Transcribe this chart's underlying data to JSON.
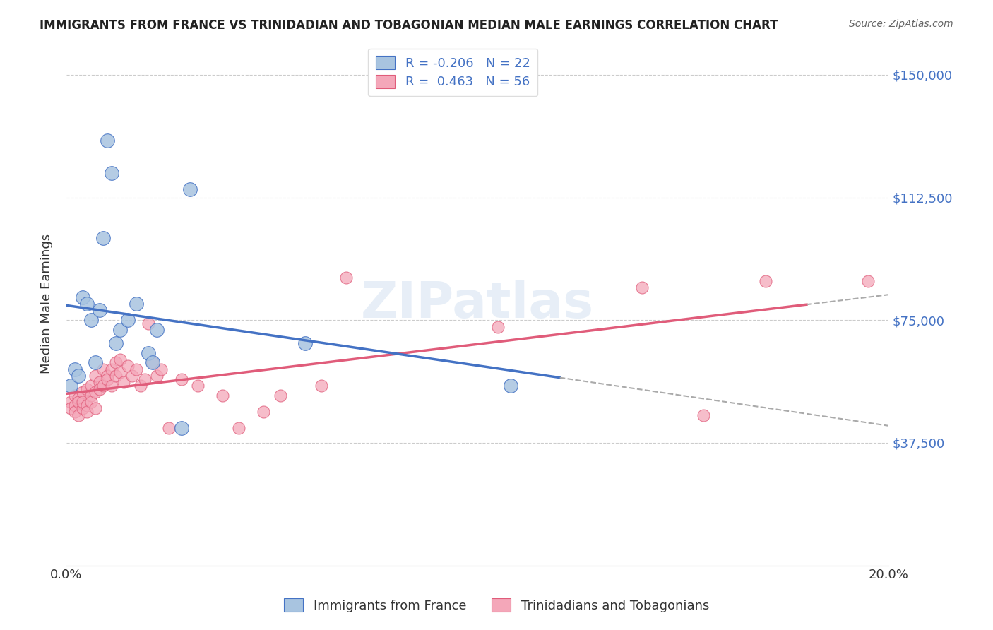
{
  "title": "IMMIGRANTS FROM FRANCE VS TRINIDADIAN AND TOBAGONIAN MEDIAN MALE EARNINGS CORRELATION CHART",
  "source": "Source: ZipAtlas.com",
  "ylabel": "Median Male Earnings",
  "xlim": [
    0.0,
    0.2
  ],
  "ylim": [
    0,
    160000
  ],
  "yticks": [
    0,
    37500,
    75000,
    112500,
    150000
  ],
  "ytick_labels": [
    "",
    "$37,500",
    "$75,000",
    "$112,500",
    "$150,000"
  ],
  "xticks": [
    0.0,
    0.02,
    0.04,
    0.06,
    0.08,
    0.1,
    0.12,
    0.14,
    0.16,
    0.18,
    0.2
  ],
  "legend_labels": [
    "Immigrants from France",
    "Trinidadians and Tobagonians"
  ],
  "R_france": -0.206,
  "N_france": 22,
  "R_trini": 0.463,
  "N_trini": 56,
  "blue_color": "#a8c4e0",
  "blue_line_color": "#4472c4",
  "pink_color": "#f4a7b9",
  "pink_line_color": "#e05c7a",
  "title_color": "#222222",
  "right_label_color": "#4472c4",
  "background_color": "#ffffff",
  "france_x": [
    0.001,
    0.002,
    0.003,
    0.004,
    0.005,
    0.006,
    0.007,
    0.008,
    0.009,
    0.01,
    0.011,
    0.012,
    0.013,
    0.015,
    0.017,
    0.02,
    0.021,
    0.022,
    0.028,
    0.03,
    0.058,
    0.108
  ],
  "france_y": [
    55000,
    60000,
    58000,
    82000,
    80000,
    75000,
    62000,
    78000,
    100000,
    130000,
    120000,
    68000,
    72000,
    75000,
    80000,
    65000,
    62000,
    72000,
    42000,
    115000,
    68000,
    55000
  ],
  "trini_x": [
    0.001,
    0.001,
    0.002,
    0.002,
    0.002,
    0.003,
    0.003,
    0.003,
    0.004,
    0.004,
    0.004,
    0.005,
    0.005,
    0.005,
    0.006,
    0.006,
    0.006,
    0.007,
    0.007,
    0.007,
    0.008,
    0.008,
    0.009,
    0.009,
    0.01,
    0.01,
    0.011,
    0.011,
    0.012,
    0.012,
    0.013,
    0.013,
    0.014,
    0.015,
    0.016,
    0.017,
    0.018,
    0.019,
    0.02,
    0.021,
    0.022,
    0.023,
    0.025,
    0.028,
    0.032,
    0.038,
    0.042,
    0.048,
    0.052,
    0.062,
    0.068,
    0.105,
    0.14,
    0.155,
    0.17,
    0.195
  ],
  "trini_y": [
    50000,
    48000,
    52000,
    49000,
    47000,
    51000,
    50000,
    46000,
    53000,
    48000,
    50000,
    54000,
    49000,
    47000,
    55000,
    52000,
    50000,
    58000,
    53000,
    48000,
    56000,
    54000,
    60000,
    55000,
    58000,
    57000,
    60000,
    55000,
    62000,
    58000,
    63000,
    59000,
    56000,
    61000,
    58000,
    60000,
    55000,
    57000,
    74000,
    62000,
    58000,
    60000,
    42000,
    57000,
    55000,
    52000,
    42000,
    47000,
    52000,
    55000,
    88000,
    73000,
    85000,
    46000,
    87000,
    87000
  ]
}
